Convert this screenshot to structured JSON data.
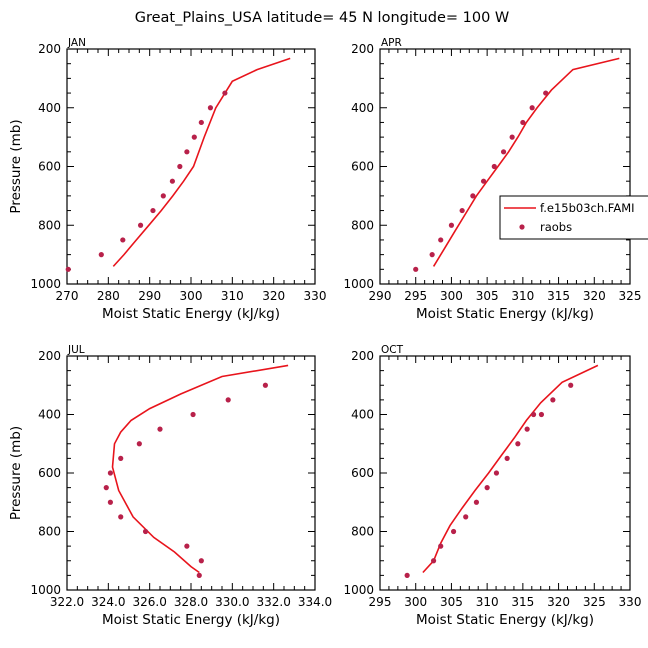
{
  "figure": {
    "title": "Great_Plains_USA  latitude= 45 N longitude= 100 W",
    "legend": {
      "placement": "right-middle of APR panel",
      "entries": [
        {
          "label": "f.e15b03ch.FAMI",
          "kind": "line"
        },
        {
          "label": "raobs",
          "kind": "marker"
        }
      ]
    },
    "colors": {
      "model": "#e8141c",
      "obs": "#b8214a"
    }
  },
  "chart_data": [
    {
      "panel": "JAN",
      "type": "line",
      "xlabel": "Moist Static Energy (kJ/kg)",
      "ylabel": "Pressure (mb)",
      "xlim": [
        270,
        330
      ],
      "ylim": [
        1000,
        200
      ],
      "y_inverted": true,
      "xticks": [
        270,
        280,
        290,
        300,
        310,
        320,
        330
      ],
      "xtick_labels": [
        "270",
        "280",
        "290",
        "300",
        "310",
        "320",
        "330"
      ],
      "yticks": [
        200,
        400,
        600,
        800,
        1000
      ],
      "series": [
        {
          "name": "f.e15b03ch.FAMI",
          "kind": "line",
          "x": [
            281.2,
            283.8,
            286.8,
            289.8,
            292.8,
            295.6,
            298.2,
            300.6,
            303.2,
            306.0,
            310.0,
            316.0,
            324.0
          ],
          "y": [
            940,
            900,
            850,
            800,
            750,
            700,
            650,
            600,
            500,
            400,
            310,
            270,
            232
          ]
        },
        {
          "name": "raobs",
          "kind": "marker",
          "x": [
            270.3,
            278.3,
            283.5,
            287.8,
            290.8,
            293.3,
            295.5,
            297.3,
            299.0,
            300.8,
            302.5,
            304.7,
            308.2
          ],
          "y": [
            950,
            900,
            850,
            800,
            750,
            700,
            650,
            600,
            550,
            500,
            450,
            400,
            350
          ]
        }
      ]
    },
    {
      "panel": "APR",
      "type": "line",
      "xlabel": "Moist Static Energy (kJ/kg)",
      "ylabel": "",
      "xlim": [
        290,
        325
      ],
      "ylim": [
        1000,
        200
      ],
      "y_inverted": true,
      "xticks": [
        290,
        295,
        300,
        305,
        310,
        315,
        320,
        325
      ],
      "xtick_labels": [
        "290",
        "295",
        "300",
        "305",
        "310",
        "315",
        "320",
        "325"
      ],
      "yticks": [
        200,
        400,
        600,
        800,
        1000
      ],
      "series": [
        {
          "name": "f.e15b03ch.FAMI",
          "kind": "line",
          "x": [
            297.5,
            299.0,
            300.5,
            302.0,
            303.5,
            305.0,
            306.5,
            308.0,
            309.3,
            310.5,
            312.0,
            314.0,
            317.0,
            323.5
          ],
          "y": [
            940,
            880,
            820,
            760,
            700,
            650,
            600,
            550,
            500,
            450,
            400,
            340,
            270,
            232
          ]
        },
        {
          "name": "raobs",
          "kind": "marker",
          "x": [
            295.0,
            297.3,
            298.5,
            300.0,
            301.5,
            303.0,
            304.5,
            306.0,
            307.3,
            308.5,
            310.0,
            311.3,
            313.2
          ],
          "y": [
            950,
            900,
            850,
            800,
            750,
            700,
            650,
            600,
            550,
            500,
            450,
            400,
            350
          ]
        }
      ]
    },
    {
      "panel": "JUL",
      "type": "line",
      "xlabel": "Moist Static Energy (kJ/kg)",
      "ylabel": "Pressure (mb)",
      "xlim": [
        322,
        334
      ],
      "ylim": [
        1000,
        200
      ],
      "y_inverted": true,
      "xticks": [
        322,
        324,
        326,
        328,
        330,
        332,
        334
      ],
      "xtick_labels": [
        "322.0",
        "324.0",
        "326.0",
        "328.0",
        "330.0",
        "332.0",
        "334.0"
      ],
      "yticks": [
        200,
        400,
        600,
        800,
        1000
      ],
      "series": [
        {
          "name": "f.e15b03ch.FAMI",
          "kind": "line",
          "x": [
            328.4,
            328.0,
            327.2,
            326.2,
            325.2,
            324.5,
            324.2,
            324.3,
            324.6,
            325.1,
            326.0,
            327.5,
            329.5,
            332.7
          ],
          "y": [
            940,
            920,
            870,
            820,
            750,
            660,
            580,
            500,
            460,
            420,
            380,
            330,
            270,
            232
          ]
        },
        {
          "name": "raobs",
          "kind": "marker",
          "x": [
            328.4,
            328.5,
            327.8,
            325.8,
            324.6,
            324.1,
            323.9,
            324.1,
            324.6,
            325.5,
            326.5,
            328.1,
            329.8,
            331.6
          ],
          "y": [
            950,
            900,
            850,
            800,
            750,
            700,
            650,
            600,
            550,
            500,
            450,
            400,
            350,
            300
          ]
        }
      ]
    },
    {
      "panel": "OCT",
      "type": "line",
      "xlabel": "Moist Static Energy (kJ/kg)",
      "ylabel": "",
      "xlim": [
        295,
        330
      ],
      "ylim": [
        1000,
        200
      ],
      "y_inverted": true,
      "xticks": [
        295,
        300,
        305,
        310,
        315,
        320,
        325,
        330
      ],
      "xtick_labels": [
        "295",
        "300",
        "305",
        "310",
        "315",
        "320",
        "325",
        "330"
      ],
      "yticks": [
        200,
        400,
        600,
        800,
        1000
      ],
      "series": [
        {
          "name": "f.e15b03ch.FAMI",
          "kind": "line",
          "x": [
            301.0,
            302.5,
            303.5,
            304.8,
            306.5,
            308.3,
            310.2,
            312.0,
            313.8,
            315.5,
            317.5,
            320.5,
            325.5
          ],
          "y": [
            940,
            900,
            840,
            780,
            720,
            660,
            600,
            540,
            480,
            420,
            360,
            290,
            232
          ]
        },
        {
          "name": "raobs",
          "kind": "marker",
          "x": [
            298.8,
            302.5,
            303.5,
            305.3,
            307.0,
            308.5,
            310.0,
            311.3,
            312.8,
            314.3,
            315.6,
            316.5,
            317.6,
            319.2,
            321.7
          ],
          "y": [
            950,
            900,
            850,
            800,
            750,
            700,
            650,
            600,
            550,
            500,
            450,
            400,
            400,
            350,
            300
          ]
        }
      ]
    }
  ]
}
